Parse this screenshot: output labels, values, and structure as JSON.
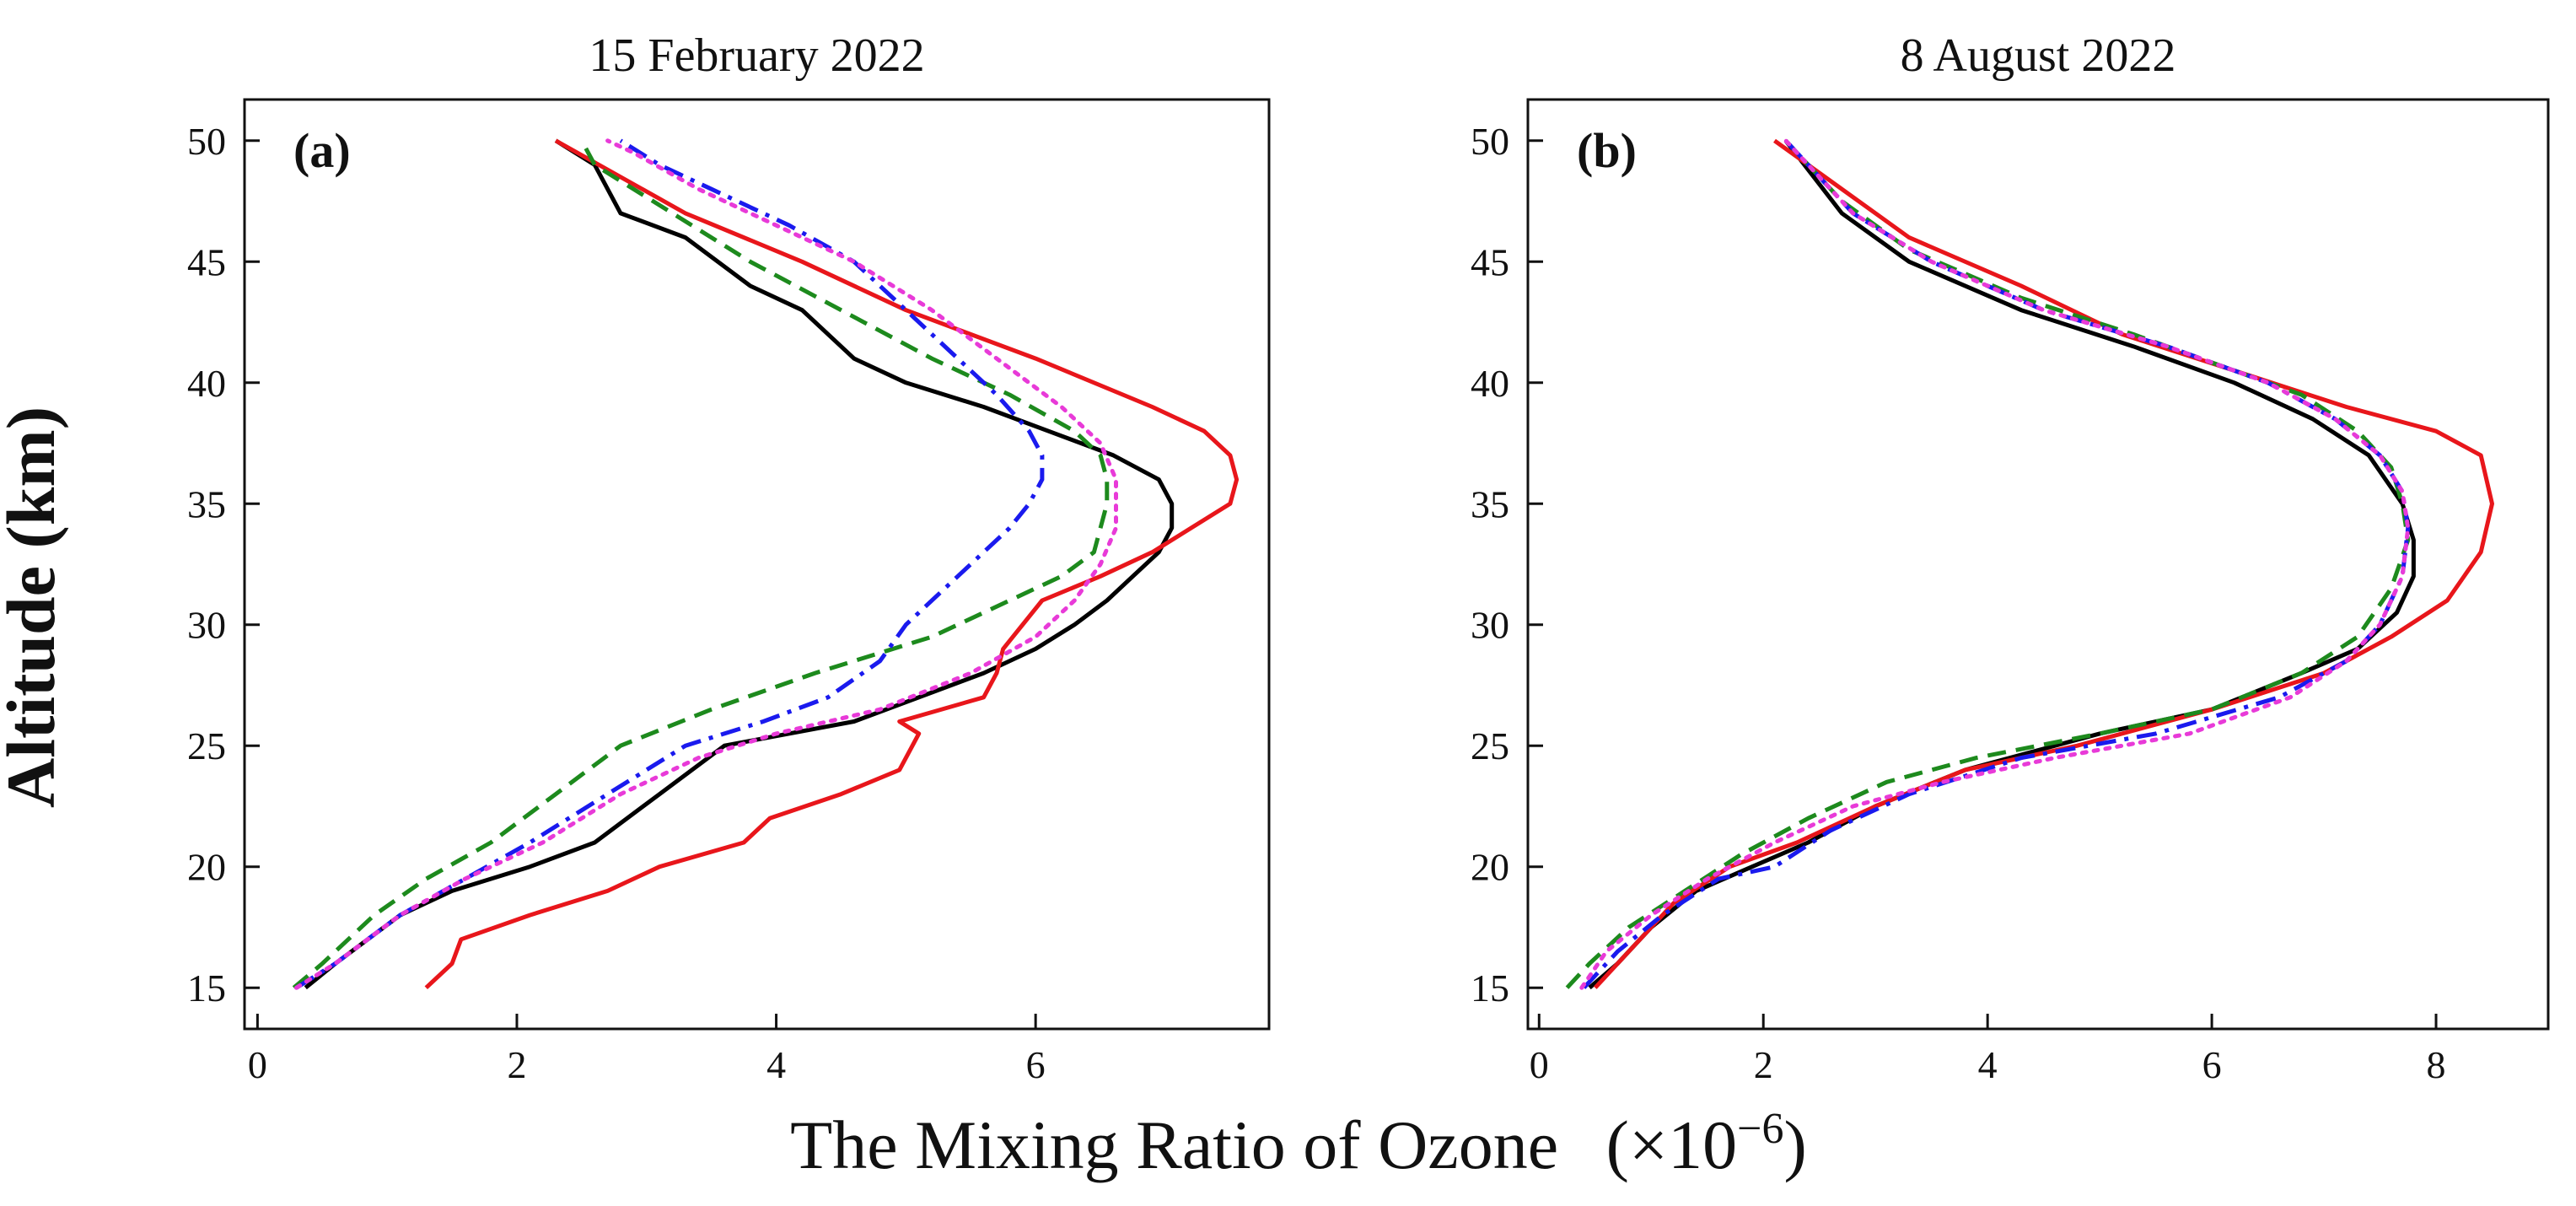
{
  "figure": {
    "ylabel": "Altitude (km)",
    "xlabel": "The Mixing Ratio of Ozone",
    "xlabel_unit": "(×10",
    "xlabel_exp": "−6",
    "xlabel_close": ")"
  },
  "chart_data": [
    {
      "type": "line",
      "title": "15 February 2022",
      "panel_tag": "(a)",
      "xlim": [
        -0.1,
        7.8
      ],
      "ylim": [
        13.3,
        51.7
      ],
      "xticks": [
        0,
        2,
        4,
        6
      ],
      "yticks": [
        15,
        20,
        25,
        30,
        35,
        40,
        45,
        50
      ],
      "grid": false,
      "series": [
        {
          "color": "#000000",
          "dash": "solid",
          "x": [
            0.37,
            0.6,
            1.1,
            1.5,
            2.1,
            2.6,
            3.1,
            3.6,
            4.6,
            5.6,
            6.0,
            6.3,
            6.55,
            6.75,
            6.95,
            7.05,
            7.05,
            6.95,
            6.6,
            6.1,
            5.6,
            5.0,
            4.6,
            4.4,
            4.2,
            3.8,
            3.3,
            2.8,
            2.6,
            2.3
          ],
          "y": [
            15,
            16,
            18,
            19,
            20,
            21,
            23,
            25,
            26,
            28,
            29,
            30,
            31,
            32,
            33,
            34,
            35,
            36,
            37,
            38,
            39,
            40,
            41,
            42,
            43,
            44,
            46,
            47,
            49,
            50
          ]
        },
        {
          "color": "#e8161b",
          "dash": "solid",
          "x": [
            1.3,
            1.5,
            1.57,
            2.1,
            2.7,
            3.1,
            3.75,
            3.95,
            4.5,
            4.95,
            5.05,
            5.1,
            4.95,
            5.6,
            5.7,
            5.75,
            6.05,
            6.5,
            6.9,
            7.2,
            7.5,
            7.55,
            7.5,
            7.3,
            6.9,
            6.0,
            5.0,
            4.2,
            3.3,
            2.3
          ],
          "y": [
            15,
            16,
            17,
            18,
            19,
            20,
            21,
            22,
            23,
            24,
            25,
            25.5,
            26,
            27,
            28,
            29,
            31,
            32,
            33,
            34,
            35,
            36,
            37,
            38,
            39,
            41,
            43,
            45,
            47,
            50
          ]
        },
        {
          "color": "#1d8a1d",
          "dash": "dash",
          "x": [
            0.28,
            0.5,
            0.9,
            1.3,
            1.8,
            2.3,
            2.8,
            3.5,
            4.3,
            5.2,
            5.8,
            6.2,
            6.45,
            6.55,
            6.55,
            6.5,
            6.3,
            5.8,
            5.2,
            4.5,
            3.8,
            3.2,
            2.6,
            2.5
          ],
          "y": [
            15,
            16,
            18,
            19.5,
            21,
            23,
            25,
            26.5,
            28,
            29.5,
            31,
            32,
            33,
            35,
            36,
            37,
            38,
            39.5,
            41,
            43,
            45,
            47,
            49,
            50
          ]
        },
        {
          "color": "#1a1aee",
          "dash": "dashdot",
          "x": [
            0.3,
            0.6,
            1.1,
            1.6,
            2.1,
            2.7,
            3.3,
            3.9,
            4.4,
            4.8,
            5.0,
            5.4,
            5.8,
            5.95,
            6.05,
            6.05,
            5.95,
            5.7,
            5.4,
            5.0,
            4.6,
            4.1,
            3.5,
            3.1,
            2.8
          ],
          "y": [
            15,
            16,
            18,
            19.5,
            21,
            23,
            25,
            26,
            27,
            28.5,
            30,
            32,
            34,
            35,
            36,
            37,
            38,
            39.5,
            41,
            43,
            45,
            46.5,
            48,
            49,
            50
          ]
        },
        {
          "color": "#e83ad8",
          "dash": "dot",
          "x": [
            0.3,
            0.6,
            1.1,
            1.6,
            2.2,
            2.8,
            3.4,
            4.0,
            4.8,
            5.5,
            6.0,
            6.3,
            6.5,
            6.62,
            6.62,
            6.5,
            6.2,
            5.7,
            5.2,
            4.6,
            4.0,
            3.4,
            2.9,
            2.7
          ],
          "y": [
            15,
            16,
            18,
            19.5,
            21,
            23,
            24.5,
            25.5,
            26.5,
            28,
            29.5,
            31,
            32.5,
            34,
            36,
            37.5,
            39,
            41,
            43,
            45,
            46.5,
            48,
            49.5,
            50
          ]
        }
      ]
    },
    {
      "type": "line",
      "title": "8 August 2022",
      "panel_tag": "(b)",
      "xlim": [
        -0.1,
        9.0
      ],
      "ylim": [
        13.3,
        51.7
      ],
      "xticks": [
        0,
        2,
        4,
        6,
        8
      ],
      "yticks": [
        15,
        20,
        25,
        30,
        35,
        40,
        45,
        50
      ],
      "grid": false,
      "series": [
        {
          "color": "#000000",
          "dash": "solid",
          "x": [
            0.45,
            0.7,
            1.0,
            1.4,
            1.9,
            2.4,
            3.0,
            3.8,
            5.0,
            6.0,
            6.8,
            7.3,
            7.65,
            7.8,
            7.8,
            7.7,
            7.4,
            6.9,
            6.2,
            5.3,
            4.3,
            3.3,
            2.7,
            2.2
          ],
          "y": [
            15,
            16,
            17.5,
            19,
            20,
            21,
            22.5,
            24,
            25.5,
            26.5,
            28,
            29,
            30.5,
            32,
            33.5,
            35,
            37,
            38.5,
            40,
            41.5,
            43,
            45,
            47,
            50
          ]
        },
        {
          "color": "#e8161b",
          "dash": "solid",
          "x": [
            0.5,
            0.8,
            1.2,
            1.7,
            2.3,
            3.0,
            3.8,
            4.8,
            6.0,
            7.0,
            7.6,
            8.1,
            8.4,
            8.5,
            8.4,
            8.0,
            7.2,
            6.2,
            5.2,
            4.3,
            3.3,
            2.1
          ],
          "y": [
            15,
            16.5,
            18.5,
            20,
            21,
            22.5,
            24,
            25,
            26.5,
            28,
            29.5,
            31,
            33,
            35,
            37,
            38,
            39,
            40.5,
            42,
            44,
            46,
            50
          ]
        },
        {
          "color": "#1d8a1d",
          "dash": "dash",
          "x": [
            0.25,
            0.45,
            0.8,
            1.3,
            1.8,
            2.4,
            3.1,
            3.9,
            5.0,
            6.0,
            6.8,
            7.3,
            7.6,
            7.75,
            7.7,
            7.6,
            7.3,
            6.8,
            6.2,
            5.3,
            4.3,
            3.3,
            2.7,
            2.2
          ],
          "y": [
            15,
            16,
            17.5,
            19,
            20.5,
            22,
            23.5,
            24.5,
            25.5,
            26.5,
            28,
            29.5,
            31.5,
            33.5,
            35,
            36.5,
            38,
            39.5,
            40.5,
            42,
            43.5,
            45.5,
            47.5,
            50
          ]
        },
        {
          "color": "#1a1aee",
          "dash": "dashdot",
          "x": [
            0.4,
            0.7,
            1.1,
            1.6,
            2.1,
            2.6,
            3.3,
            4.3,
            5.5,
            6.6,
            7.2,
            7.5,
            7.7,
            7.75,
            7.7,
            7.5,
            7.1,
            6.5,
            5.6,
            4.5,
            3.5,
            2.8,
            2.2
          ],
          "y": [
            15,
            16.5,
            18,
            19.5,
            20,
            21.5,
            23,
            24.5,
            25.5,
            27,
            28.5,
            30,
            32,
            34,
            35.5,
            37,
            38.5,
            40,
            41.5,
            43,
            45,
            47,
            50
          ]
        },
        {
          "color": "#e83ad8",
          "dash": "dot",
          "x": [
            0.38,
            0.6,
            1.0,
            1.5,
            2.1,
            2.8,
            3.6,
            4.6,
            5.8,
            6.7,
            7.2,
            7.5,
            7.7,
            7.75,
            7.7,
            7.5,
            7.1,
            6.5,
            5.6,
            4.5,
            3.5,
            2.8,
            2.2
          ],
          "y": [
            15,
            16.5,
            18,
            19.5,
            21,
            22.5,
            23.5,
            24.5,
            25.5,
            27,
            28.5,
            30,
            32,
            34,
            35.5,
            37,
            38.5,
            40,
            41.5,
            43,
            45,
            47,
            50
          ]
        }
      ]
    }
  ]
}
